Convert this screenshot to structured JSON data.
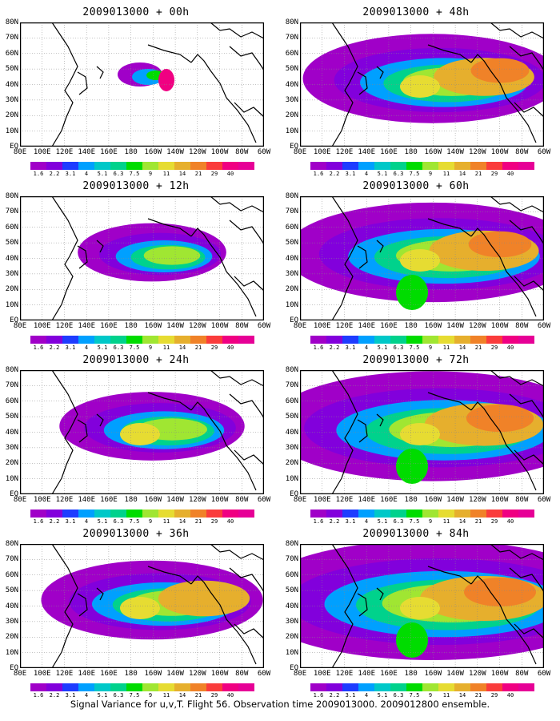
{
  "panels": [
    {
      "title": "2009013000 + 00h",
      "lead": 0
    },
    {
      "title": "2009013000 + 48h",
      "lead": 48
    },
    {
      "title": "2009013000 + 12h",
      "lead": 12
    },
    {
      "title": "2009013000 + 60h",
      "lead": 60
    },
    {
      "title": "2009013000 + 24h",
      "lead": 24
    },
    {
      "title": "2009013000 + 72h",
      "lead": 72
    },
    {
      "title": "2009013000 + 36h",
      "lead": 36
    },
    {
      "title": "2009013000 + 84h",
      "lead": 84
    }
  ],
  "lat_labels": [
    "80N",
    "70N",
    "60N",
    "50N",
    "40N",
    "30N",
    "20N",
    "10N",
    "EQ"
  ],
  "lon_labels": [
    "80E",
    "100E",
    "120E",
    "140E",
    "160E",
    "180",
    "160W",
    "140W",
    "120W",
    "100W",
    "80W",
    "60W"
  ],
  "colorbar": {
    "labels": [
      "1.6",
      "2.2",
      "3.1",
      "4",
      "5.1",
      "6.3",
      "7.5",
      "9",
      "11",
      "14",
      "21",
      "29",
      "40"
    ],
    "colors": [
      "#a000c8",
      "#8200dc",
      "#1e3cff",
      "#00a0ff",
      "#00c8c8",
      "#00d28c",
      "#00dc00",
      "#a0e632",
      "#e6dc32",
      "#e6af2d",
      "#f08228",
      "#fa3c3c",
      "#f00082"
    ]
  },
  "caption": "Signal Variance for u,v,T. Flight 56. Observation time 2009013000. 2009012800 ensemble."
}
